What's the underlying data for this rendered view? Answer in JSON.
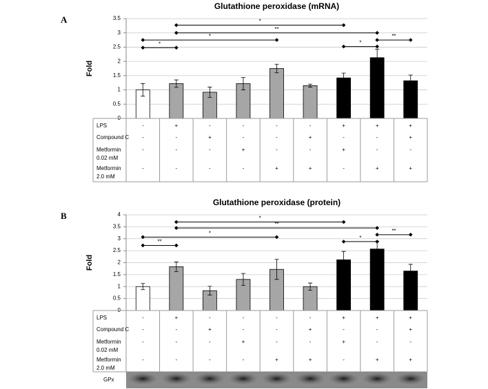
{
  "chart_data": [
    {
      "type": "bar",
      "panel": "A",
      "title": "Glutathione peroxidase (mRNA)",
      "y_label": "Fold",
      "values": [
        1.0,
        1.22,
        0.92,
        1.22,
        1.75,
        1.15,
        1.42,
        2.13,
        1.32
      ],
      "errors": [
        0.22,
        0.13,
        0.18,
        0.22,
        0.15,
        0.05,
        0.17,
        0.3,
        0.2
      ],
      "colors": [
        "#ffffff",
        "#a6a6a6",
        "#a6a6a6",
        "#a6a6a6",
        "#a6a6a6",
        "#a6a6a6",
        "#000000",
        "#000000",
        "#000000"
      ],
      "ylim": [
        0,
        3.5
      ],
      "yticks": [
        0,
        0.5,
        1,
        1.5,
        2,
        2.5,
        3,
        3.5
      ],
      "grid": true,
      "brackets": [
        {
          "label": "*",
          "start": 0,
          "end": 1,
          "y": 2.48
        },
        {
          "label": "*",
          "start": 0,
          "end": 4,
          "y": 2.75
        },
        {
          "label": "*",
          "start": 1,
          "end": 6,
          "y": 3.27
        },
        {
          "label": "**",
          "start": 1,
          "end": 7,
          "y": 3.0
        },
        {
          "label": "*",
          "start": 6,
          "end": 7,
          "y": 2.52
        },
        {
          "label": "**",
          "start": 7,
          "end": 8,
          "y": 2.75
        }
      ],
      "treatments": [
        {
          "label": [
            "LPS"
          ],
          "values": [
            "-",
            "+",
            "-",
            "-",
            "-",
            "-",
            "+",
            "+",
            "+"
          ]
        },
        {
          "label": [
            "Compound C"
          ],
          "values": [
            "-",
            "-",
            "+",
            "-",
            "-",
            "+",
            "-",
            "-",
            "+"
          ]
        },
        {
          "label": [
            "Metformin",
            "0.02 mM"
          ],
          "values": [
            "-",
            "-",
            "-",
            "+",
            "-",
            "-",
            "+",
            "-",
            "-"
          ]
        },
        {
          "label": [
            "Metformin",
            "2.0 mM"
          ],
          "values": [
            "-",
            "-",
            "-",
            "-",
            "+",
            "+",
            "-",
            "+",
            "+"
          ]
        }
      ]
    },
    {
      "type": "bar",
      "panel": "B",
      "title": "Glutathione peroxidase (protein)",
      "y_label": "Fold",
      "values": [
        1.0,
        1.83,
        0.83,
        1.3,
        1.72,
        1.0,
        2.12,
        2.57,
        1.65
      ],
      "errors": [
        0.13,
        0.2,
        0.18,
        0.25,
        0.42,
        0.15,
        0.35,
        0.32,
        0.28
      ],
      "colors": [
        "#ffffff",
        "#a6a6a6",
        "#a6a6a6",
        "#a6a6a6",
        "#a6a6a6",
        "#a6a6a6",
        "#000000",
        "#000000",
        "#000000"
      ],
      "ylim": [
        0,
        4
      ],
      "yticks": [
        0,
        0.5,
        1,
        1.5,
        2,
        2.5,
        3,
        3.5,
        4
      ],
      "grid": true,
      "brackets": [
        {
          "label": "**",
          "start": 0,
          "end": 1,
          "y": 2.72
        },
        {
          "label": "*",
          "start": 0,
          "end": 4,
          "y": 3.07
        },
        {
          "label": "*",
          "start": 1,
          "end": 6,
          "y": 3.7
        },
        {
          "label": "**",
          "start": 1,
          "end": 7,
          "y": 3.45
        },
        {
          "label": "*",
          "start": 6,
          "end": 7,
          "y": 2.88
        },
        {
          "label": "**",
          "start": 7,
          "end": 8,
          "y": 3.17
        }
      ],
      "treatments": [
        {
          "label": [
            "LPS"
          ],
          "values": [
            "-",
            "+",
            "-",
            "-",
            "-",
            "-",
            "+",
            "+",
            "+"
          ]
        },
        {
          "label": [
            "Compound C"
          ],
          "values": [
            "-",
            "-",
            "+",
            "-",
            "-",
            "+",
            "-",
            "-",
            "+"
          ]
        },
        {
          "label": [
            "Metformin",
            "0.02 mM"
          ],
          "values": [
            "-",
            "-",
            "-",
            "+",
            "-",
            "-",
            "+",
            "-",
            "-"
          ]
        },
        {
          "label": [
            "Metformin",
            "2.0 mM"
          ],
          "values": [
            "-",
            "-",
            "-",
            "-",
            "+",
            "+",
            "-",
            "+",
            "+"
          ]
        }
      ],
      "blot_label": "GPx"
    }
  ]
}
